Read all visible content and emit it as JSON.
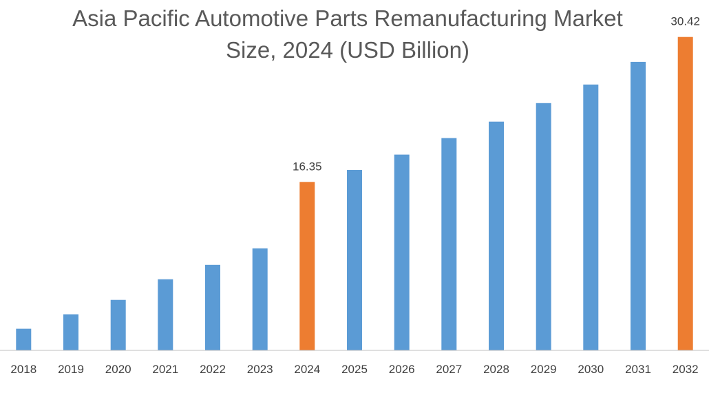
{
  "chart_data": {
    "type": "bar",
    "title_lines": [
      "Asia Pacific Automotive Parts Remanufacturing Market",
      "Size, 2024 (USD Billion)"
    ],
    "categories": [
      "2018",
      "2019",
      "2020",
      "2021",
      "2022",
      "2023",
      "2024",
      "2025",
      "2026",
      "2027",
      "2028",
      "2029",
      "2030",
      "2031",
      "2032"
    ],
    "values": [
      2.1,
      3.5,
      4.9,
      6.9,
      8.3,
      9.9,
      16.35,
      17.5,
      19.0,
      20.6,
      22.2,
      24.0,
      25.8,
      28.0,
      30.42
    ],
    "highlight_categories": [
      "2024",
      "2032"
    ],
    "data_labels": {
      "2024": "16.35",
      "2032": "30.42"
    },
    "ylim": [
      0,
      32
    ],
    "xlabel": "",
    "ylabel": "",
    "grid": false,
    "legend": "none",
    "colors": {
      "bar": "#5B9BD5",
      "highlight": "#ED7D31",
      "axis": "#BFBFBF"
    }
  }
}
